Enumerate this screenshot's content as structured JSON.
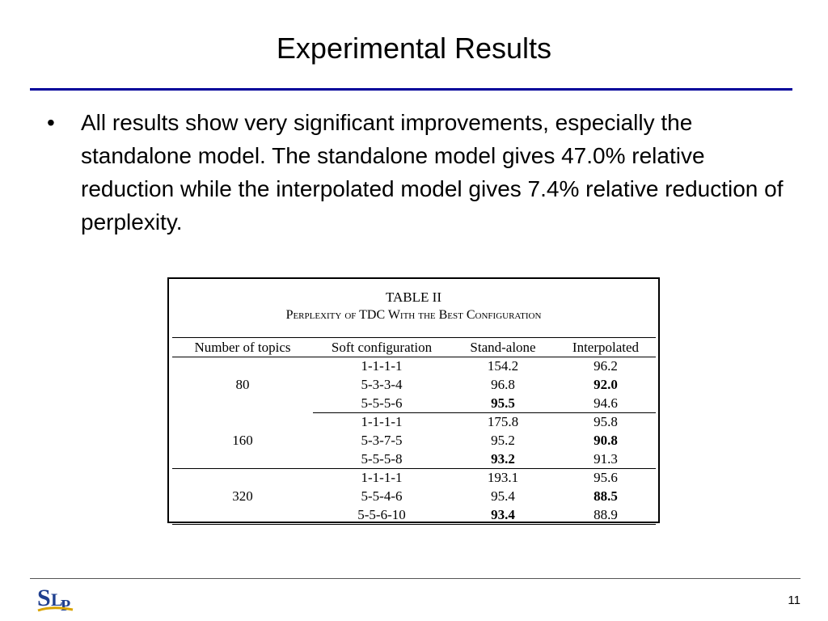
{
  "slide": {
    "title": "Experimental Results",
    "bullets": [
      "All results show very significant improvements, especially the standalone model. The standalone model gives 47.0% relative reduction while the interpolated model gives 7.4% relative reduction of perplexity."
    ],
    "bullet_symbol": "•",
    "page_number": "11"
  },
  "logo": {
    "icon": "slp-logo-icon",
    "letters": "SLP"
  },
  "table": {
    "caption": "TABLE II",
    "subcaption": "Perplexity of TDC With the Best Configuration",
    "headers": [
      "Number of topics",
      "Soft configuration",
      "Stand-alone",
      "Interpolated"
    ],
    "groups": [
      {
        "topics": "80",
        "rows": [
          {
            "config": "1-1-1-1",
            "standalone": "154.2",
            "interpolated": "96.2",
            "bold_standalone": false,
            "bold_interpolated": false
          },
          {
            "config": "5-3-3-4",
            "standalone": "96.8",
            "interpolated": "92.0",
            "bold_standalone": false,
            "bold_interpolated": true
          },
          {
            "config": "5-5-5-6",
            "standalone": "95.5",
            "interpolated": "94.6",
            "bold_standalone": true,
            "bold_interpolated": false
          }
        ]
      },
      {
        "topics": "160",
        "rows": [
          {
            "config": "1-1-1-1",
            "standalone": "175.8",
            "interpolated": "95.8",
            "bold_standalone": false,
            "bold_interpolated": false
          },
          {
            "config": "5-3-7-5",
            "standalone": "95.2",
            "interpolated": "90.8",
            "bold_standalone": false,
            "bold_interpolated": true
          },
          {
            "config": "5-5-5-8",
            "standalone": "93.2",
            "interpolated": "91.3",
            "bold_standalone": true,
            "bold_interpolated": false
          }
        ]
      },
      {
        "topics": "320",
        "rows": [
          {
            "config": "1-1-1-1",
            "standalone": "193.1",
            "interpolated": "95.6",
            "bold_standalone": false,
            "bold_interpolated": false
          },
          {
            "config": "5-5-4-6",
            "standalone": "95.4",
            "interpolated": "88.5",
            "bold_standalone": false,
            "bold_interpolated": true
          },
          {
            "config": "5-5-6-10",
            "standalone": "93.4",
            "interpolated": "88.9",
            "bold_standalone": true,
            "bold_interpolated": false
          }
        ]
      }
    ]
  },
  "colors": {
    "title_rule": "#000099",
    "logo_blue": "#1f3f8f",
    "logo_gold": "#d9a300"
  }
}
